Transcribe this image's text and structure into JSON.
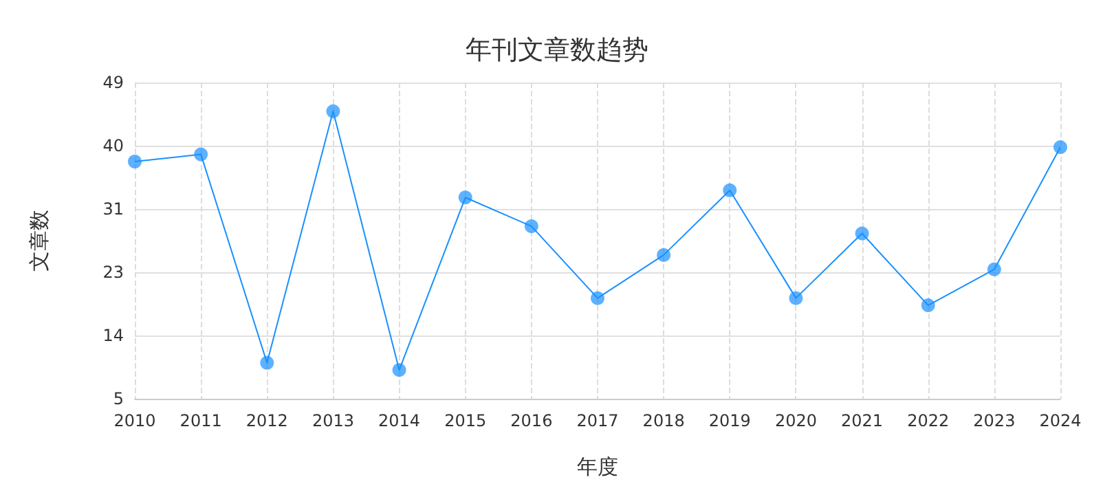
{
  "chart_data": {
    "type": "line",
    "title": "年刊文章数趋势",
    "xlabel": "年度",
    "ylabel": "文章数",
    "categories": [
      "2010",
      "2011",
      "2012",
      "2013",
      "2014",
      "2015",
      "2016",
      "2017",
      "2018",
      "2019",
      "2020",
      "2021",
      "2022",
      "2023",
      "2024"
    ],
    "series": [
      {
        "color": "#1890ff",
        "values": [
          38,
          39,
          10,
          45,
          9,
          33,
          29,
          19,
          25,
          34,
          19,
          28,
          18,
          23,
          40
        ]
      }
    ],
    "ylim": [
      5,
      49
    ],
    "yticks": [
      5,
      {
        "value": 13.8,
        "label": "14"
      },
      {
        "value": 22.6,
        "label": "23"
      },
      {
        "value": 31.4,
        "label": "31"
      },
      {
        "value": 40.2,
        "label": "40"
      },
      49
    ],
    "grid": true,
    "marker": "circle",
    "line_style": "solid"
  }
}
